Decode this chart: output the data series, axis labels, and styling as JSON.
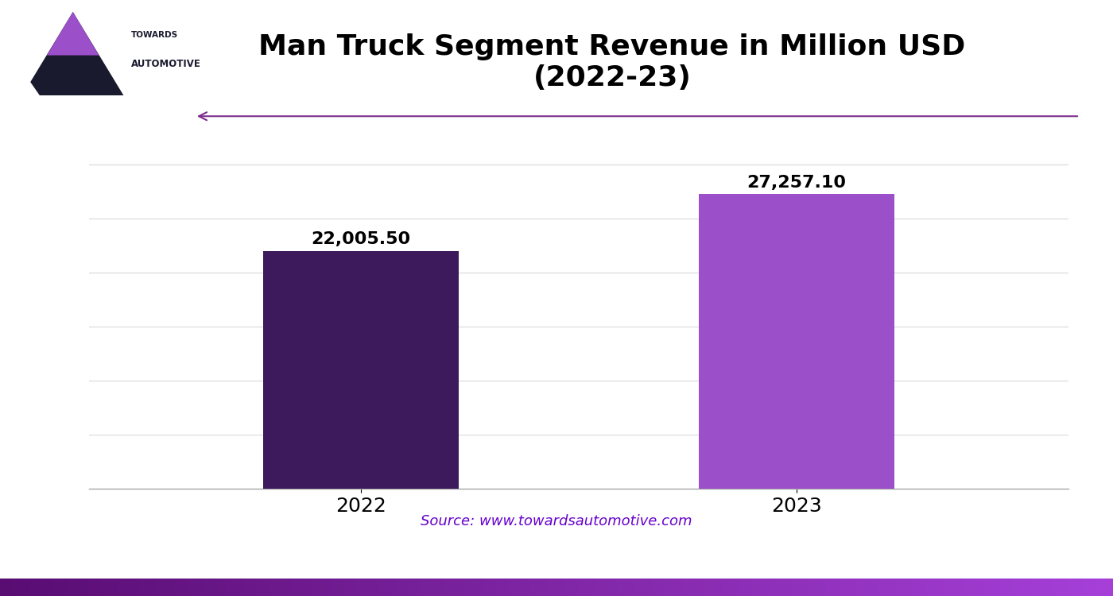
{
  "title": "Man Truck Segment Revenue in Million USD\n(2022-23)",
  "categories": [
    "2022",
    "2023"
  ],
  "values": [
    22005.5,
    27257.1
  ],
  "bar_colors": [
    "#3d1a5c",
    "#9b4fc8"
  ],
  "value_labels": [
    "22,005.50",
    "27,257.10"
  ],
  "source_text": "Source: www.towardsautomotive.com",
  "source_color": "#6600cc",
  "background_color": "#ffffff",
  "grid_color": "#e0e0e0",
  "ylim": [
    0,
    32000
  ],
  "title_fontsize": 26,
  "label_fontsize": 16,
  "tick_fontsize": 18,
  "source_fontsize": 13,
  "bar_width": 0.18,
  "arrow_color": "#7b2d8b"
}
